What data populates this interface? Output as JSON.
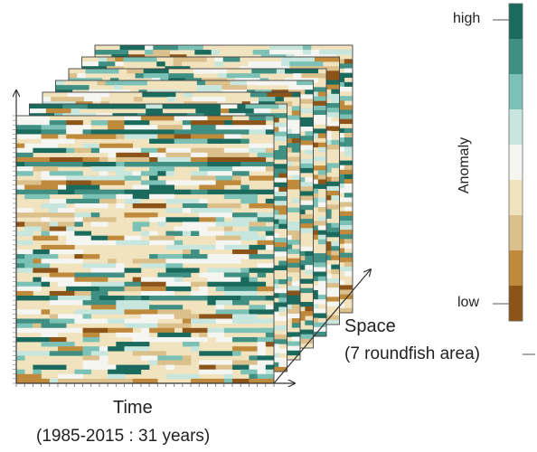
{
  "labels": {
    "time": "Time",
    "time_range": "(1985-2015 : 31 years)",
    "space": "Space",
    "space_detail": "(7 roundfish area)"
  },
  "colorbar": {
    "title": "Anomaly",
    "high": "high",
    "low": "low",
    "colors_high_to_low": [
      "#1a6a5e",
      "#3f8f83",
      "#7cc1b5",
      "#c7e6de",
      "#f5f5f2",
      "#f2e3bf",
      "#dcc08c",
      "#bf8a3c",
      "#8c5418"
    ]
  },
  "heatmap": {
    "years": 31,
    "areas": 7,
    "colors_low_to_high": [
      "#8c5418",
      "#bf8a3c",
      "#dcc08c",
      "#f2e3bf",
      "#f5f5f2",
      "#c7e6de",
      "#7cc1b5",
      "#3f8f83",
      "#1a6a5e"
    ]
  }
}
